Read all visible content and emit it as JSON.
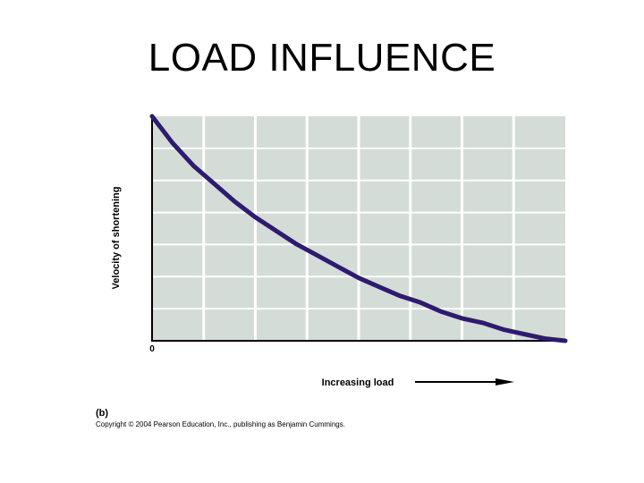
{
  "slide": {
    "title": "LOAD INFLUENCE"
  },
  "chart_data": {
    "type": "line",
    "title": "",
    "xlabel": "Increasing load",
    "ylabel": "Velocity of shortening",
    "origin_label": "0",
    "xlim": [
      0,
      100
    ],
    "ylim": [
      0,
      100
    ],
    "grid": true,
    "series": [
      {
        "values_x": [
          0,
          5,
          10,
          15,
          20,
          25,
          30,
          35,
          40,
          45,
          50,
          55,
          60,
          65,
          70,
          75,
          80,
          85,
          90,
          95,
          100
        ],
        "values_y": [
          100,
          88,
          78,
          70,
          62,
          55,
          49,
          43,
          38,
          33,
          28,
          24,
          20,
          17,
          13,
          10,
          8,
          5,
          3,
          1,
          0
        ]
      }
    ],
    "colors": {
      "curve": "#2e1a6e",
      "plot_bg": "#d3dcd6",
      "grid": "#ffffff"
    }
  },
  "footer": {
    "figure_label": "(b)",
    "copyright": "Copyright © 2004 Pearson Education, Inc., publishing as Benjamin Cummings."
  }
}
